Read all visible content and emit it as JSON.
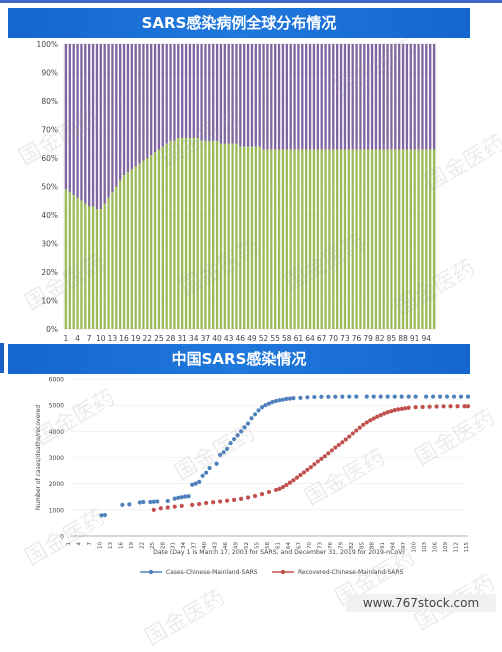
{
  "chart_data": [
    {
      "type": "stacked-bar-100",
      "title": "SARS感染病例全球分布情况",
      "ylim": [
        0,
        100
      ],
      "y_ticks": [
        "0%",
        "10%",
        "20%",
        "30%",
        "40%",
        "50%",
        "60%",
        "70%",
        "80%",
        "90%",
        "100%"
      ],
      "x_tick_labels": [
        "1",
        "4",
        "7",
        "10",
        "13",
        "16",
        "19",
        "22",
        "25",
        "28",
        "31",
        "34",
        "37",
        "40",
        "43",
        "46",
        "49",
        "52",
        "55",
        "58",
        "61",
        "64",
        "67",
        "70",
        "73",
        "76",
        "79",
        "82",
        "85",
        "88",
        "91",
        "94"
      ],
      "colors": {
        "lower": "#9bbb59",
        "upper": "#8064a2"
      },
      "series": [
        {
          "values": [
            49,
            48,
            47,
            46,
            45,
            44,
            43,
            43,
            42,
            42,
            44,
            46,
            48,
            50,
            52,
            54,
            55,
            56,
            57,
            58,
            59,
            60,
            61,
            62,
            63,
            64,
            65,
            66,
            66,
            67,
            67,
            67,
            67,
            67,
            67,
            66,
            66,
            66,
            66,
            66,
            65,
            65,
            65,
            65,
            65,
            64,
            64,
            64,
            64,
            64,
            64,
            63,
            63,
            63,
            63,
            63,
            63,
            63,
            63,
            63,
            63,
            63,
            63,
            63,
            63,
            63,
            63,
            63,
            63,
            63,
            63,
            63,
            63,
            63,
            63,
            63,
            63,
            63,
            63,
            63,
            63,
            63,
            63,
            63,
            63,
            63,
            63,
            63,
            63,
            63,
            63,
            63,
            63,
            63,
            63,
            63
          ]
        }
      ]
    },
    {
      "type": "scatter",
      "title": "中国SARS感染情况",
      "xlabel": "Date (Day 1 is March 17, 2003 for SARS, and December 31, 2019 for 2019-nCoV)",
      "ylabel": "Number of cases/deaths/recovered",
      "ylim": [
        0,
        6000
      ],
      "xlim": [
        1,
        115
      ],
      "y_ticks": [
        "0",
        "1000",
        "2000",
        "3000",
        "4000",
        "5000",
        "6000"
      ],
      "x_tick_labels": [
        "1",
        "4",
        "7",
        "10",
        "13",
        "16",
        "19",
        "22",
        "25",
        "28",
        "31",
        "34",
        "37",
        "40",
        "43",
        "46",
        "49",
        "52",
        "55",
        "58",
        "61",
        "64",
        "67",
        "70",
        "73",
        "76",
        "79",
        "82",
        "85",
        "88",
        "91",
        "94",
        "97",
        "100",
        "103",
        "106",
        "109",
        "112",
        "115"
      ],
      "legend_position": "bottom",
      "series": [
        {
          "name": "Cases-Chinese-Mainland-SARS",
          "color": "#4f81bd",
          "points": [
            [
              10,
              790
            ],
            [
              11,
              800
            ],
            [
              16,
              1190
            ],
            [
              18,
              1210
            ],
            [
              21,
              1280
            ],
            [
              22,
              1300
            ],
            [
              24,
              1300
            ],
            [
              25,
              1310
            ],
            [
              26,
              1320
            ],
            [
              29,
              1340
            ],
            [
              31,
              1430
            ],
            [
              32,
              1460
            ],
            [
              33,
              1480
            ],
            [
              34,
              1510
            ],
            [
              35,
              1520
            ],
            [
              36,
              1960
            ],
            [
              37,
              2000
            ],
            [
              38,
              2070
            ],
            [
              39,
              2300
            ],
            [
              40,
              2420
            ],
            [
              41,
              2600
            ],
            [
              43,
              2760
            ],
            [
              44,
              3100
            ],
            [
              45,
              3200
            ],
            [
              46,
              3330
            ],
            [
              47,
              3550
            ],
            [
              48,
              3700
            ],
            [
              49,
              3850
            ],
            [
              50,
              4000
            ],
            [
              51,
              4150
            ],
            [
              52,
              4300
            ],
            [
              53,
              4500
            ],
            [
              54,
              4650
            ],
            [
              55,
              4800
            ],
            [
              56,
              4920
            ],
            [
              57,
              5000
            ],
            [
              58,
              5060
            ],
            [
              59,
              5120
            ],
            [
              60,
              5160
            ],
            [
              61,
              5190
            ],
            [
              62,
              5210
            ],
            [
              63,
              5240
            ],
            [
              64,
              5250
            ],
            [
              65,
              5270
            ],
            [
              67,
              5280
            ],
            [
              69,
              5300
            ],
            [
              71,
              5310
            ],
            [
              73,
              5320
            ],
            [
              75,
              5320
            ],
            [
              77,
              5323
            ],
            [
              79,
              5325
            ],
            [
              81,
              5326
            ],
            [
              83,
              5326
            ],
            [
              86,
              5327
            ],
            [
              88,
              5327
            ],
            [
              90,
              5327
            ],
            [
              92,
              5327
            ],
            [
              94,
              5327
            ],
            [
              96,
              5327
            ],
            [
              98,
              5327
            ],
            [
              100,
              5327
            ],
            [
              103,
              5327
            ],
            [
              105,
              5327
            ],
            [
              107,
              5327
            ],
            [
              109,
              5327
            ],
            [
              111,
              5327
            ],
            [
              113,
              5327
            ],
            [
              115,
              5327
            ]
          ]
        },
        {
          "name": "Recovered-Chinese-Mainland-SARS",
          "color": "#c0504d",
          "points": [
            [
              25,
              1000
            ],
            [
              27,
              1060
            ],
            [
              29,
              1090
            ],
            [
              31,
              1120
            ],
            [
              33,
              1150
            ],
            [
              36,
              1190
            ],
            [
              38,
              1220
            ],
            [
              40,
              1260
            ],
            [
              42,
              1290
            ],
            [
              44,
              1320
            ],
            [
              46,
              1350
            ],
            [
              48,
              1380
            ],
            [
              50,
              1420
            ],
            [
              52,
              1470
            ],
            [
              54,
              1530
            ],
            [
              56,
              1600
            ],
            [
              58,
              1680
            ],
            [
              60,
              1760
            ],
            [
              61,
              1800
            ],
            [
              62,
              1870
            ],
            [
              63,
              1950
            ],
            [
              64,
              2040
            ],
            [
              65,
              2130
            ],
            [
              66,
              2230
            ],
            [
              67,
              2330
            ],
            [
              68,
              2430
            ],
            [
              69,
              2530
            ],
            [
              70,
              2630
            ],
            [
              71,
              2740
            ],
            [
              72,
              2850
            ],
            [
              73,
              2950
            ],
            [
              74,
              3050
            ],
            [
              75,
              3160
            ],
            [
              76,
              3270
            ],
            [
              77,
              3380
            ],
            [
              78,
              3480
            ],
            [
              79,
              3580
            ],
            [
              80,
              3690
            ],
            [
              81,
              3800
            ],
            [
              82,
              3920
            ],
            [
              83,
              4030
            ],
            [
              84,
              4140
            ],
            [
              85,
              4250
            ],
            [
              86,
              4340
            ],
            [
              87,
              4420
            ],
            [
              88,
              4490
            ],
            [
              89,
              4560
            ],
            [
              90,
              4620
            ],
            [
              91,
              4680
            ],
            [
              92,
              4730
            ],
            [
              93,
              4770
            ],
            [
              94,
              4810
            ],
            [
              95,
              4840
            ],
            [
              96,
              4860
            ],
            [
              97,
              4880
            ],
            [
              98,
              4900
            ],
            [
              100,
              4920
            ],
            [
              102,
              4930
            ],
            [
              104,
              4940
            ],
            [
              106,
              4950
            ],
            [
              108,
              4955
            ],
            [
              110,
              4958
            ],
            [
              112,
              4960
            ],
            [
              114,
              4960
            ],
            [
              115,
              4960
            ]
          ]
        }
      ]
    }
  ],
  "watermark": "国金医药",
  "footer": "www.767stock.com"
}
